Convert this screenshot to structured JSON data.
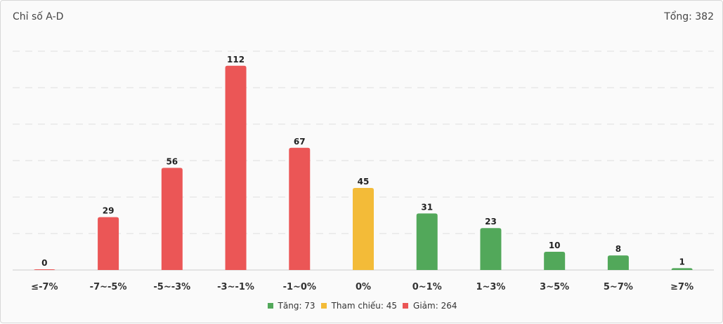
{
  "header": {
    "title": "Chỉ số A-D",
    "total": "Tổng: 382"
  },
  "colors": {
    "up": "#52a85a",
    "ref": "#f3bb38",
    "down": "#eb5656"
  },
  "legend": [
    {
      "label": "Tăng: 73",
      "color": "#52a85a"
    },
    {
      "label": "Tham chiếu: 45",
      "color": "#f3bb38"
    },
    {
      "label": "Giảm: 264",
      "color": "#eb5656"
    }
  ],
  "chart_data": {
    "type": "bar",
    "title": "Chỉ số A-D",
    "categories": [
      "≤-7%",
      "-7~-5%",
      "-5~-3%",
      "-3~-1%",
      "-1~0%",
      "0%",
      "0~1%",
      "1~3%",
      "3~5%",
      "5~7%",
      "≥7%"
    ],
    "values": [
      0,
      29,
      56,
      112,
      67,
      45,
      31,
      23,
      10,
      8,
      1
    ],
    "groups": [
      "down",
      "down",
      "down",
      "down",
      "down",
      "ref",
      "up",
      "up",
      "up",
      "up",
      "up"
    ],
    "ylim": [
      0,
      120
    ],
    "grid": true,
    "legend_position": "bottom"
  }
}
